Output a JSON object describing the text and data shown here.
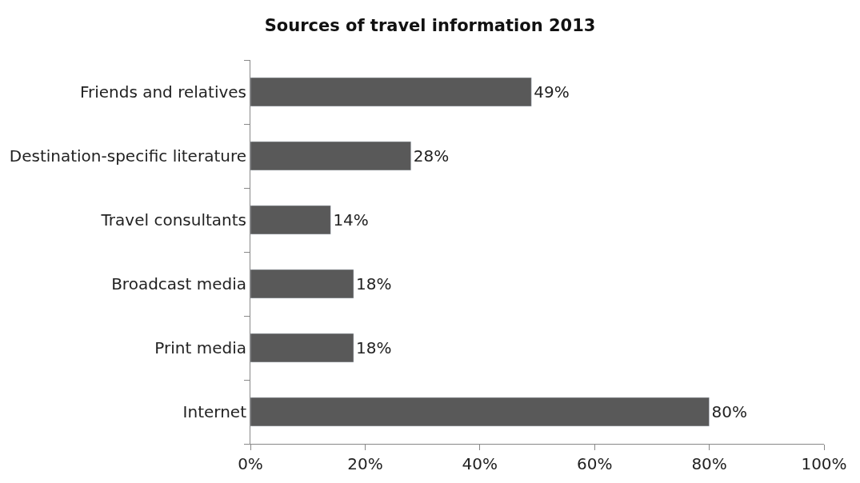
{
  "chart_data": {
    "type": "bar",
    "orientation": "horizontal",
    "title": "Sources of travel information 2013",
    "categories": [
      "Friends and relatives",
      "Destination-specific literature",
      "Travel consultants",
      "Broadcast media",
      "Print media",
      "Internet"
    ],
    "values": [
      49,
      28,
      14,
      18,
      18,
      80
    ],
    "value_labels": [
      "49%",
      "28%",
      "14%",
      "18%",
      "18%",
      "80%"
    ],
    "color": "#595959",
    "xlim": [
      0,
      100
    ],
    "xticks": [
      {
        "value": 0,
        "label": "0%"
      },
      {
        "value": 20,
        "label": "20%"
      },
      {
        "value": 40,
        "label": "40%"
      },
      {
        "value": 60,
        "label": "60%"
      },
      {
        "value": 80,
        "label": "80%"
      },
      {
        "value": 100,
        "label": "100%"
      }
    ],
    "legend": false
  }
}
